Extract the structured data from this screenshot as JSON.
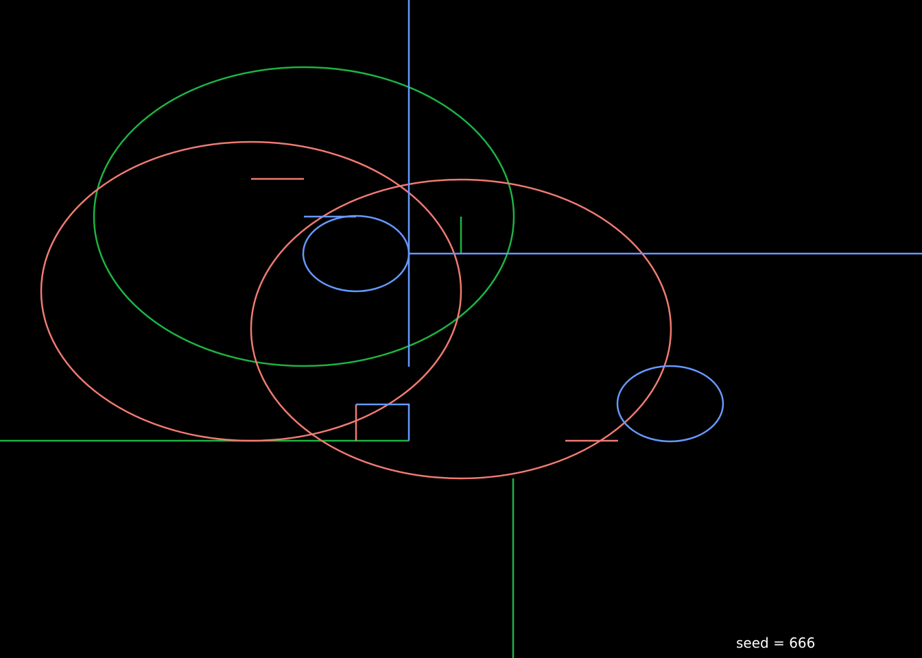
{
  "seed_label": "seed = 666",
  "colors": {
    "background": "#000000",
    "red": "#f07b72",
    "green": "#1db443",
    "blue": "#6699ff",
    "text": "#ffffff"
  }
}
